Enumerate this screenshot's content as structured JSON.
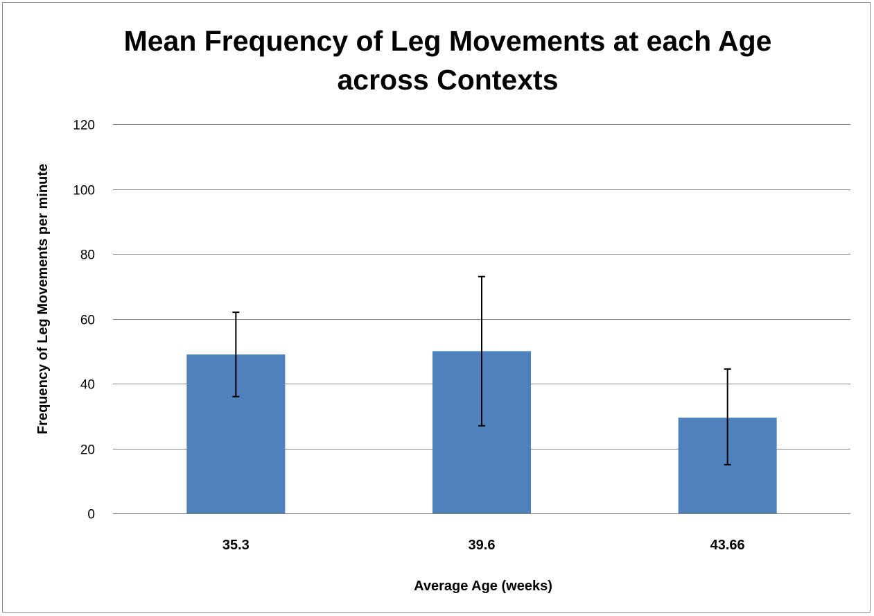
{
  "chart_data": {
    "type": "bar",
    "title_lines": [
      "Mean Frequency of Leg Movements  at each Age",
      "across Contexts"
    ],
    "xlabel": "Average Age (weeks)",
    "ylabel": "Frequency of Leg Movements per minute",
    "categories": [
      "35.3",
      "39.6",
      "43.66"
    ],
    "values": [
      49,
      50,
      29.5
    ],
    "error_low": [
      36,
      27,
      15
    ],
    "error_high": [
      62,
      73,
      44.5
    ],
    "ylim": [
      0,
      120
    ],
    "yticks": [
      "0",
      "20",
      "40",
      "60",
      "80",
      "100",
      "120"
    ],
    "grid": true,
    "legend": "none",
    "bar_color": "#4f81bd",
    "grid_color": "#868686",
    "error_bar_color": "#000000"
  }
}
